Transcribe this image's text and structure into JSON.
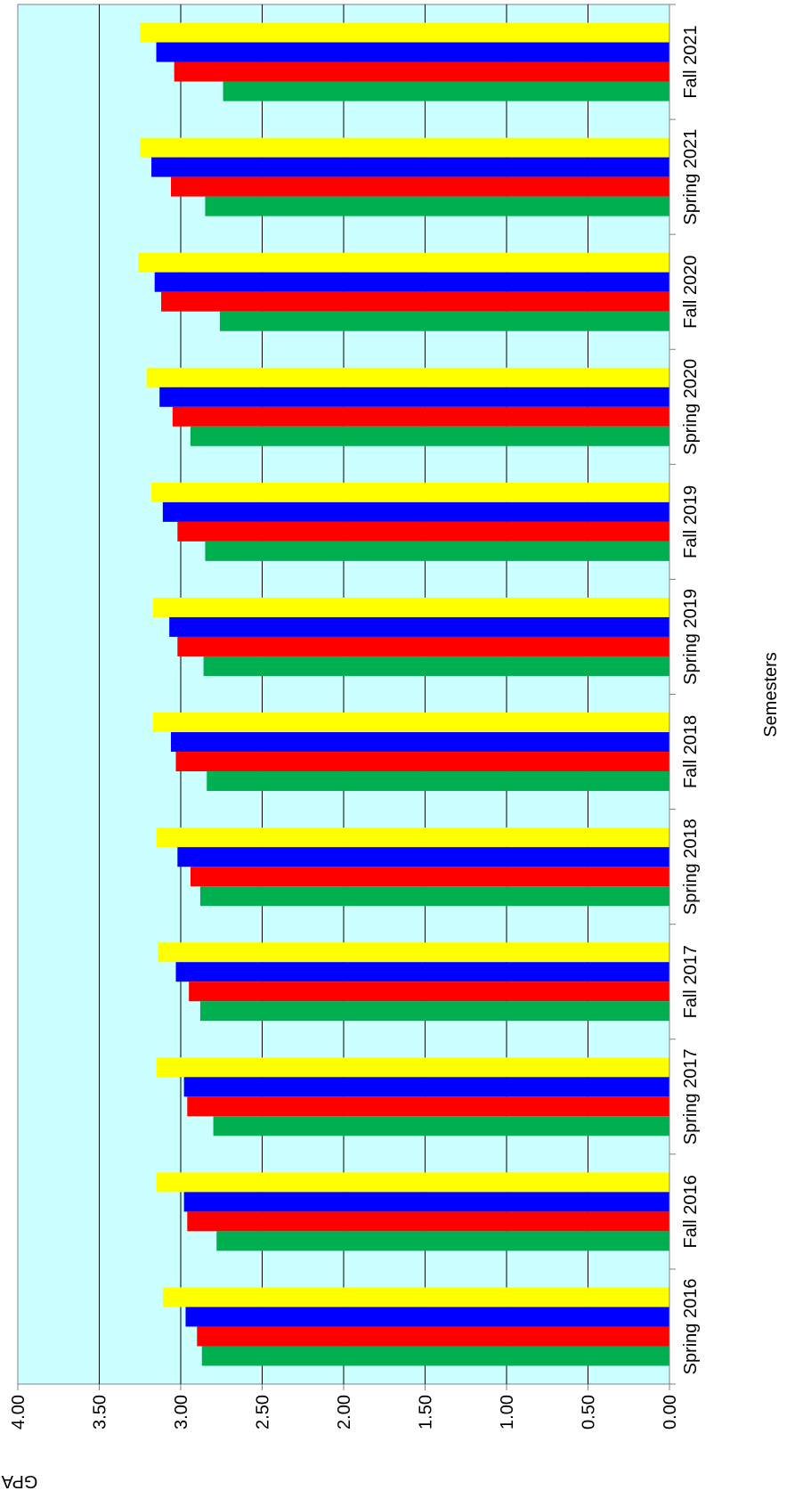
{
  "chart_data": {
    "type": "bar",
    "orientation": "rotated",
    "categories": [
      "Spring 2016",
      "Fall 2016",
      "Spring 2017",
      "Fall 2017",
      "Spring 2018",
      "Fall 2018",
      "Spring 2019",
      "Fall 2019",
      "Spring 2020",
      "Fall 2020",
      "Spring 2021",
      "Fall 2021"
    ],
    "series": [
      {
        "color": "#00b050",
        "values": [
          2.87,
          2.78,
          2.8,
          2.88,
          2.88,
          2.84,
          2.86,
          2.85,
          2.94,
          2.76,
          2.85,
          2.74
        ]
      },
      {
        "color": "#ff0000",
        "values": [
          2.9,
          2.96,
          2.96,
          2.95,
          2.94,
          3.03,
          3.02,
          3.02,
          3.05,
          3.12,
          3.06,
          3.04
        ]
      },
      {
        "color": "#0000ff",
        "values": [
          2.97,
          2.98,
          2.98,
          3.03,
          3.02,
          3.06,
          3.07,
          3.11,
          3.13,
          3.16,
          3.18,
          3.15
        ]
      },
      {
        "color": "#ffff00",
        "values": [
          3.11,
          3.15,
          3.15,
          3.14,
          3.15,
          3.17,
          3.17,
          3.18,
          3.21,
          3.26,
          3.25,
          3.25
        ]
      }
    ],
    "ylabel": "GPA",
    "xlabel": "Semesters",
    "ylim": [
      0,
      4
    ],
    "yticks": [
      "0.00",
      "0.50",
      "1.00",
      "1.50",
      "2.00",
      "2.50",
      "3.00",
      "3.50",
      "4.00"
    ],
    "plot_background": "#ccffff",
    "grid": true
  }
}
